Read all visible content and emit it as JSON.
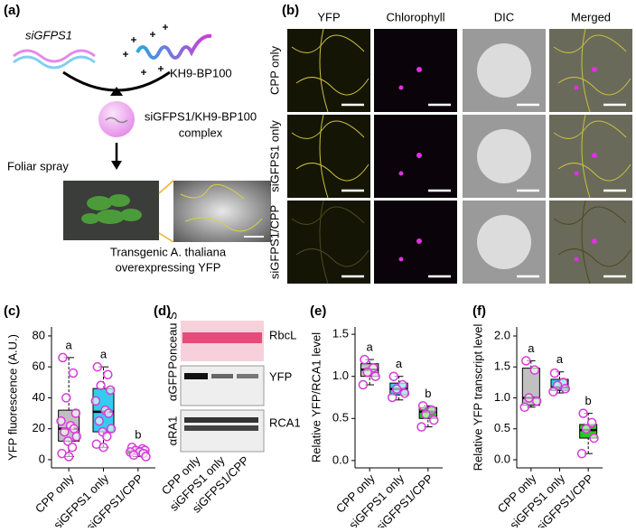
{
  "panel_labels": [
    "(a)",
    "(b)",
    "(c)",
    "(d)",
    "(e)",
    "(f)"
  ],
  "panel_a": {
    "sirna": "siGFPS1",
    "peptide": "KH9-BP100",
    "complex_line1": "siGFPS1/KH9-BP100",
    "complex_line2": "complex",
    "step": "Foliar spray",
    "caption_line1": "Transgenic A. thaliana",
    "caption_line2": "overexpressing YFP"
  },
  "panel_b": {
    "columns": [
      "YFP",
      "Chlorophyll",
      "DIC",
      "Merged"
    ],
    "rows": [
      "CPP only",
      "siGFPS1 only",
      "siGFPS1/CPP"
    ]
  },
  "panel_d": {
    "rows": [
      "Ponceau S",
      "αGFP",
      "αRA1"
    ],
    "bands": [
      "RbcL",
      "YFP",
      "RCA1"
    ],
    "lanes": [
      "CPP only",
      "siGFPS1 only",
      "siGFPS1/CPP"
    ]
  },
  "chart_data": [
    {
      "type": "box",
      "ylabel": "YFP fluorescence (A.U.)",
      "categories": [
        "CPP only",
        "siGFPS1 only",
        "siGFPS1/CPP"
      ],
      "ylim": [
        -5.3,
        85.8
      ],
      "yticks": [
        0,
        20,
        40,
        60,
        80
      ],
      "letters": [
        "a",
        "a",
        "b"
      ],
      "boxes": [
        {
          "color": "#c0c0c0",
          "whislo": 2,
          "q1": 12,
          "med": 20,
          "q3": 32,
          "whishi": 66,
          "points": [
            66,
            56,
            40,
            30,
            25,
            22,
            20,
            18,
            15,
            12,
            8,
            4,
            2
          ]
        },
        {
          "color": "#33ccee",
          "whislo": 8,
          "q1": 18,
          "med": 31,
          "q3": 46,
          "whishi": 60,
          "points": [
            60,
            55,
            48,
            45,
            38,
            32,
            30,
            25,
            20,
            18,
            15,
            10,
            8
          ]
        },
        {
          "color": "#22cc22",
          "whislo": 2,
          "q1": 4,
          "med": 5,
          "q3": 6,
          "whishi": 8,
          "points": [
            8,
            7,
            6,
            6,
            5,
            5,
            4,
            3,
            2
          ]
        }
      ]
    },
    {
      "type": "box",
      "ylabel": "Relative YFP/RCA1 level",
      "categories": [
        "CPP only",
        "siGFPS1 only",
        "siGFPS1/CPP"
      ],
      "ylim": [
        -0.087,
        1.587
      ],
      "yticks": [
        {
          "value": 0,
          "label": "0.0"
        },
        0.5,
        {
          "value": 1,
          "label": "1.0"
        },
        1.5
      ],
      "letters": [
        "a",
        "a",
        "b"
      ],
      "boxes": [
        {
          "color": "#c0c0c0",
          "whislo": 0.9,
          "q1": 1.0,
          "med": 1.08,
          "q3": 1.15,
          "whishi": 1.2,
          "points": [
            1.2,
            1.1,
            1.05,
            1.0,
            0.9
          ]
        },
        {
          "color": "#33ccee",
          "whislo": 0.72,
          "q1": 0.78,
          "med": 0.85,
          "q3": 0.92,
          "whishi": 1.0,
          "points": [
            1.0,
            0.9,
            0.85,
            0.8,
            0.75
          ]
        },
        {
          "color": "#22cc22",
          "whislo": 0.4,
          "q1": 0.5,
          "med": 0.58,
          "q3": 0.63,
          "whishi": 0.65,
          "points": [
            0.65,
            0.6,
            0.55,
            0.48,
            0.4
          ]
        }
      ]
    },
    {
      "type": "box",
      "ylabel": "Relative YFP transcript level",
      "categories": [
        "CPP only",
        "siGFPS1 only",
        "siGFPS1/CPP"
      ],
      "ylim": [
        -0.131,
        2.146
      ],
      "yticks": [
        {
          "value": 0,
          "label": "0.0"
        },
        0.5,
        {
          "value": 1,
          "label": "1.0"
        },
        1.5,
        {
          "value": 2,
          "label": "2.0"
        }
      ],
      "letters": [
        "a",
        "a",
        "b"
      ],
      "boxes": [
        {
          "color": "#c0c0c0",
          "whislo": 0.85,
          "q1": 0.88,
          "med": 1.0,
          "q3": 1.48,
          "whishi": 1.6,
          "points": [
            1.6,
            1.45,
            1.0,
            0.95,
            0.85
          ]
        },
        {
          "color": "#33ccee",
          "whislo": 1.08,
          "q1": 1.12,
          "med": 1.17,
          "q3": 1.3,
          "whishi": 1.42,
          "points": [
            1.4,
            1.25,
            1.2,
            1.15,
            1.1
          ]
        },
        {
          "color": "#22cc22",
          "whislo": 0.1,
          "q1": 0.35,
          "med": 0.48,
          "q3": 0.57,
          "whishi": 0.75,
          "points": [
            0.75,
            0.6,
            0.5,
            0.35,
            0.1
          ]
        }
      ]
    }
  ]
}
